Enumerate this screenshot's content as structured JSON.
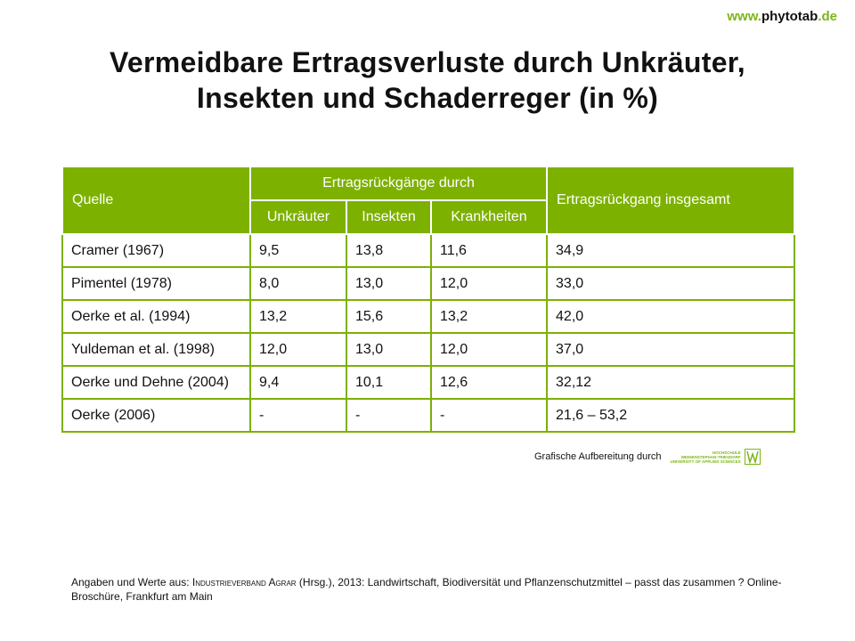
{
  "site": {
    "prefix": "www.",
    "name": "phytotab",
    "suffix": ".de"
  },
  "title": {
    "line1": "Vermeidbare Ertragsverluste durch Unkräuter,",
    "line2": "Insekten und Schaderreger (in %)"
  },
  "table": {
    "headers": {
      "source": "Quelle",
      "group": "Ertragsrückgänge durch",
      "weeds": "Unkräuter",
      "insects": "Insekten",
      "diseases": "Krankheiten",
      "total": "Ertragsrückgang insgesamt"
    },
    "rows": [
      [
        "Cramer (1967)",
        "9,5",
        "13,8",
        "11,6",
        "34,9"
      ],
      [
        "Pimentel (1978)",
        "8,0",
        "13,0",
        "12,0",
        "33,0"
      ],
      [
        "Oerke et al. (1994)",
        "13,2",
        "15,6",
        "13,2",
        "42,0"
      ],
      [
        "Yuldeman et al. (1998)",
        "12,0",
        "13,0",
        "12,0",
        "37,0"
      ],
      [
        "Oerke und Dehne (2004)",
        "9,4",
        "10,1",
        "12,6",
        "32,12"
      ],
      [
        "Oerke (2006)",
        "-",
        "-",
        "-",
        "21,6 – 53,2"
      ]
    ]
  },
  "credit": {
    "text": "Grafische Aufbereitung durch",
    "logo_line1": "HOCHSCHULE",
    "logo_line2": "WEIHENSTEPHAN-TRIESDORF",
    "logo_line3": "UNIVERSITY OF APPLIED SCIENCES"
  },
  "footer": {
    "part1": "Angaben und Werte aus: ",
    "org": "Industrieverband Agrar",
    "part2": " (Hrsg.), 2013: Landwirtschaft, Biodiversität und Pflanzenschutzmittel – passt das zusammen ? Online-Broschüre, Frankfurt am Main"
  },
  "colors": {
    "accent": "#7db100",
    "text": "#111111"
  }
}
